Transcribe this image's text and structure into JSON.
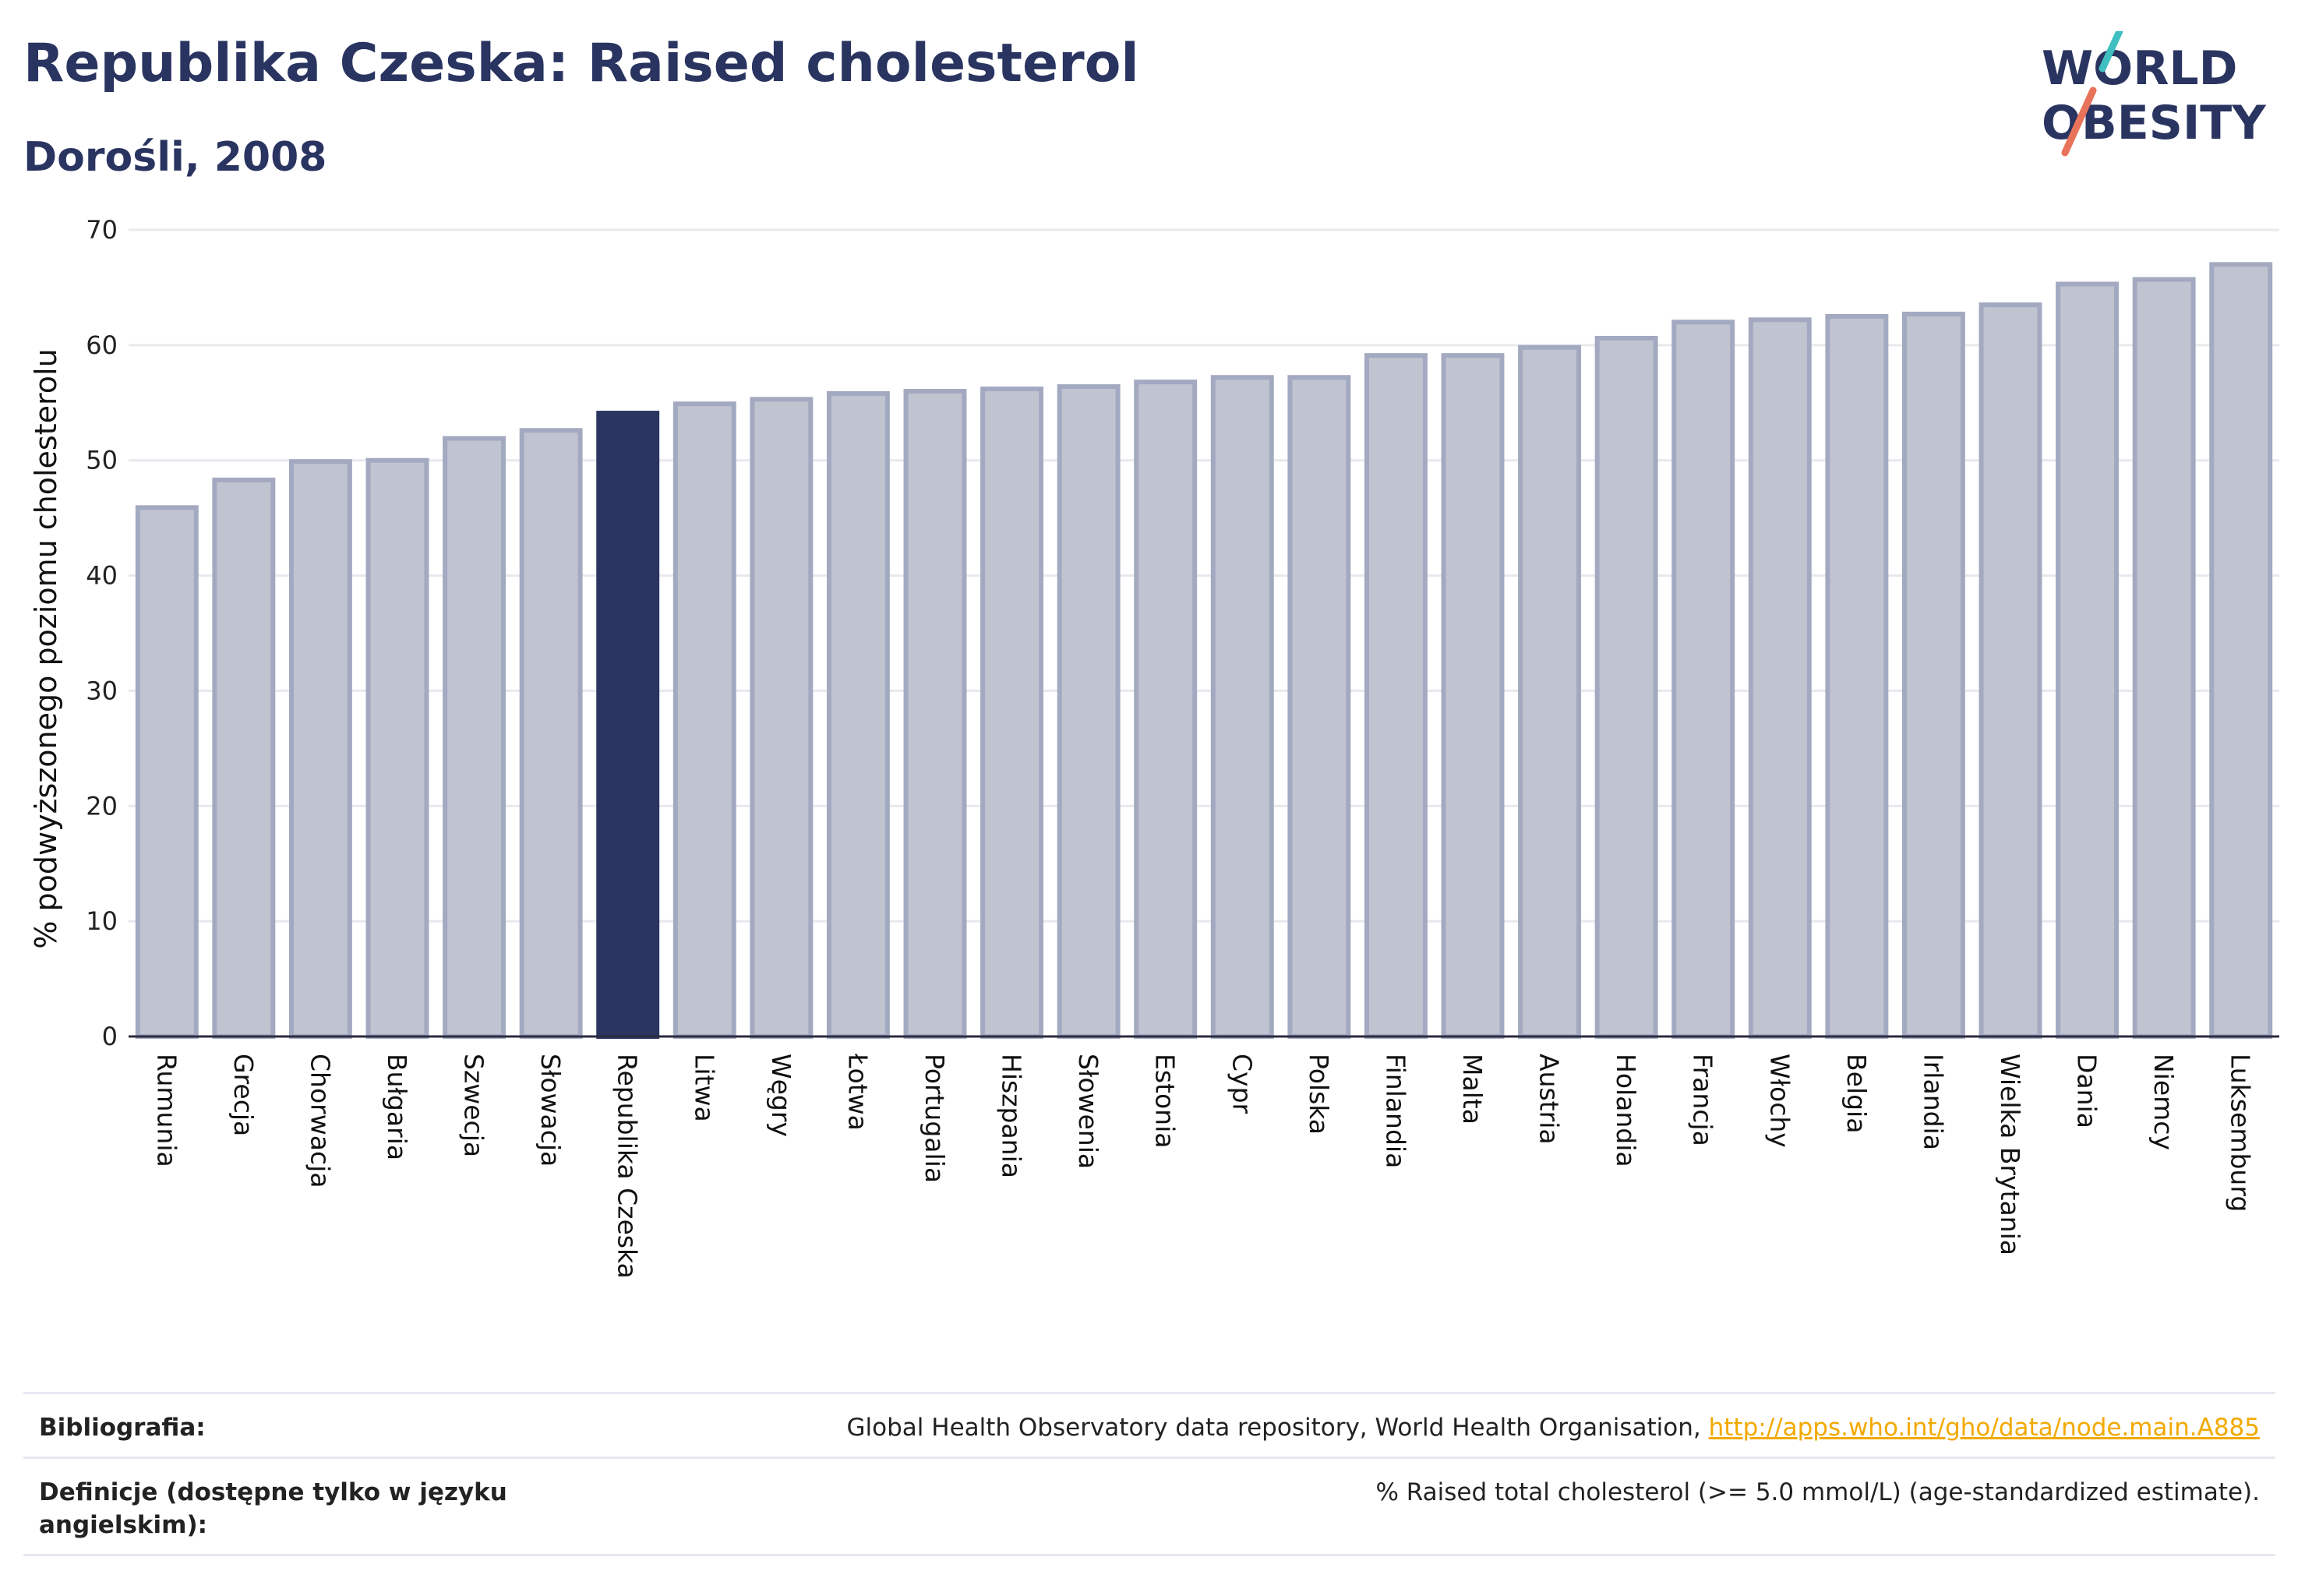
{
  "header": {
    "title": "Republika Czeska: Raised cholesterol",
    "subtitle": "Dorośli, 2008"
  },
  "logo": {
    "line1": "WORLD",
    "line2": "OBESITY",
    "accent_teal": "#3fbfbf",
    "accent_coral": "#e8735a"
  },
  "colors": {
    "highlight_bar": "#2a3460",
    "bar": "#c0c4d1",
    "bar_border": "#a3a9c0",
    "gridline": "#e8e8ee"
  },
  "chart_data": {
    "type": "bar",
    "ylabel": "% podwyższonego poziomu cholesterolu",
    "xlabel": "",
    "ylim": [
      0,
      70
    ],
    "yticks": [
      0,
      10,
      20,
      30,
      40,
      50,
      60,
      70
    ],
    "grid": true,
    "highlight": "Republika Czeska",
    "categories": [
      "Rumunia",
      "Grecja",
      "Chorwacja",
      "Bułgaria",
      "Szwecja",
      "Słowacja",
      "Republika Czeska",
      "Litwa",
      "Węgry",
      "Łotwa",
      "Portugalia",
      "Hiszpania",
      "Słowenia",
      "Estonia",
      "Cypr",
      "Polska",
      "Finlandia",
      "Malta",
      "Austria",
      "Holandia",
      "Francja",
      "Włochy",
      "Belgia",
      "Irlandia",
      "Wielka Brytania",
      "Dania",
      "Niemcy",
      "Luksemburg"
    ],
    "values": [
      45.9,
      48.3,
      49.9,
      50.0,
      51.9,
      52.6,
      54.1,
      54.9,
      55.3,
      55.8,
      56.0,
      56.2,
      56.4,
      56.8,
      57.2,
      57.2,
      59.1,
      59.1,
      59.8,
      60.6,
      62.0,
      62.2,
      62.5,
      62.7,
      63.5,
      65.3,
      65.7,
      67.0
    ]
  },
  "footer": {
    "bibliography_label": "Bibliografia:",
    "bibliography_text": "Global Health Observatory data repository, World Health Organisation, ",
    "bibliography_link": "http://apps.who.int/gho/data/node.main.A885",
    "definitions_label": "Definicje (dostępne tylko w języku angielskim):",
    "definitions_text": "% Raised total cholesterol (>= 5.0 mmol/L) (age-standardized estimate)."
  }
}
